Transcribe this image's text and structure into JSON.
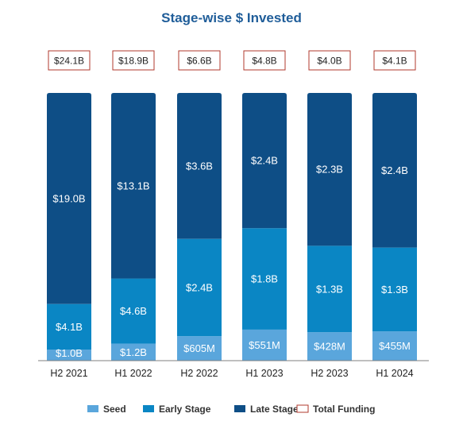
{
  "chart_data": {
    "type": "bar",
    "stacked": true,
    "title": "Stage-wise $ Invested",
    "xlabel": "",
    "ylabel": "",
    "categories": [
      "H2 2021",
      "H1 2022",
      "H2 2022",
      "H1 2023",
      "H2 2023",
      "H1 2024"
    ],
    "series": [
      {
        "name": "Seed",
        "color": "#5aa6dc",
        "values": [
          1.0,
          1.2,
          0.605,
          0.551,
          0.428,
          0.455
        ],
        "labels": [
          "$1.0B",
          "$1.2B",
          "$605M",
          "$551M",
          "$428M",
          "$455M"
        ]
      },
      {
        "name": "Early Stage",
        "color": "#0a86c4",
        "values": [
          4.1,
          4.6,
          2.4,
          1.8,
          1.3,
          1.3
        ],
        "labels": [
          "$4.1B",
          "$4.6B",
          "$2.4B",
          "$1.8B",
          "$1.3B",
          "$1.3B"
        ]
      },
      {
        "name": "Late Stage",
        "color": "#0e4e86",
        "values": [
          19.0,
          13.1,
          3.6,
          2.4,
          2.3,
          2.4
        ],
        "labels": [
          "$19.0B",
          "$13.1B",
          "$3.6B",
          "$2.4B",
          "$2.3B",
          "$2.4B"
        ]
      }
    ],
    "totals": {
      "name": "Total Funding",
      "values": [
        24.1,
        18.9,
        6.6,
        4.8,
        4.0,
        4.1
      ],
      "labels": [
        "$24.1B",
        "$18.9B",
        "$6.6B",
        "$4.8B",
        "$4.0B",
        "$4.1B"
      ],
      "border_color": "#b03a2e"
    },
    "normalized_100_percent": true,
    "legend_position": "bottom",
    "grid": false,
    "title_color": "#1f5d99"
  }
}
